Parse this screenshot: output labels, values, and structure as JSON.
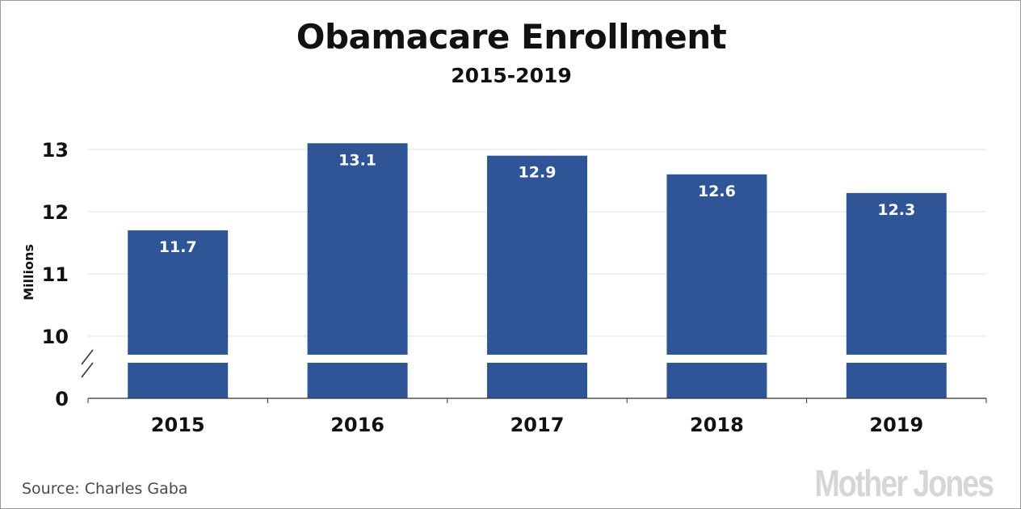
{
  "title": "Obamacare Enrollment",
  "subtitle": "2015-2019",
  "source": "Source: Charles Gaba",
  "logo": "Mother Jones",
  "colors": {
    "bar": "#2f5597",
    "bar_label": "#ffffff",
    "grid": "#e2e2e2",
    "axis": "#333333",
    "text": "#111111"
  },
  "chart_data": {
    "type": "bar",
    "categories": [
      "2015",
      "2016",
      "2017",
      "2018",
      "2019"
    ],
    "values": [
      11.7,
      13.1,
      12.9,
      12.6,
      12.3
    ],
    "value_labels": [
      "11.7",
      "13.1",
      "12.9",
      "12.6",
      "12.3"
    ],
    "xlabel": "",
    "ylabel": "Millions",
    "yticks": [
      "0",
      "10",
      "11",
      "12",
      "13"
    ],
    "ylim": [
      0,
      13.1
    ],
    "axis_break": true,
    "grid": true,
    "legend": "none"
  }
}
